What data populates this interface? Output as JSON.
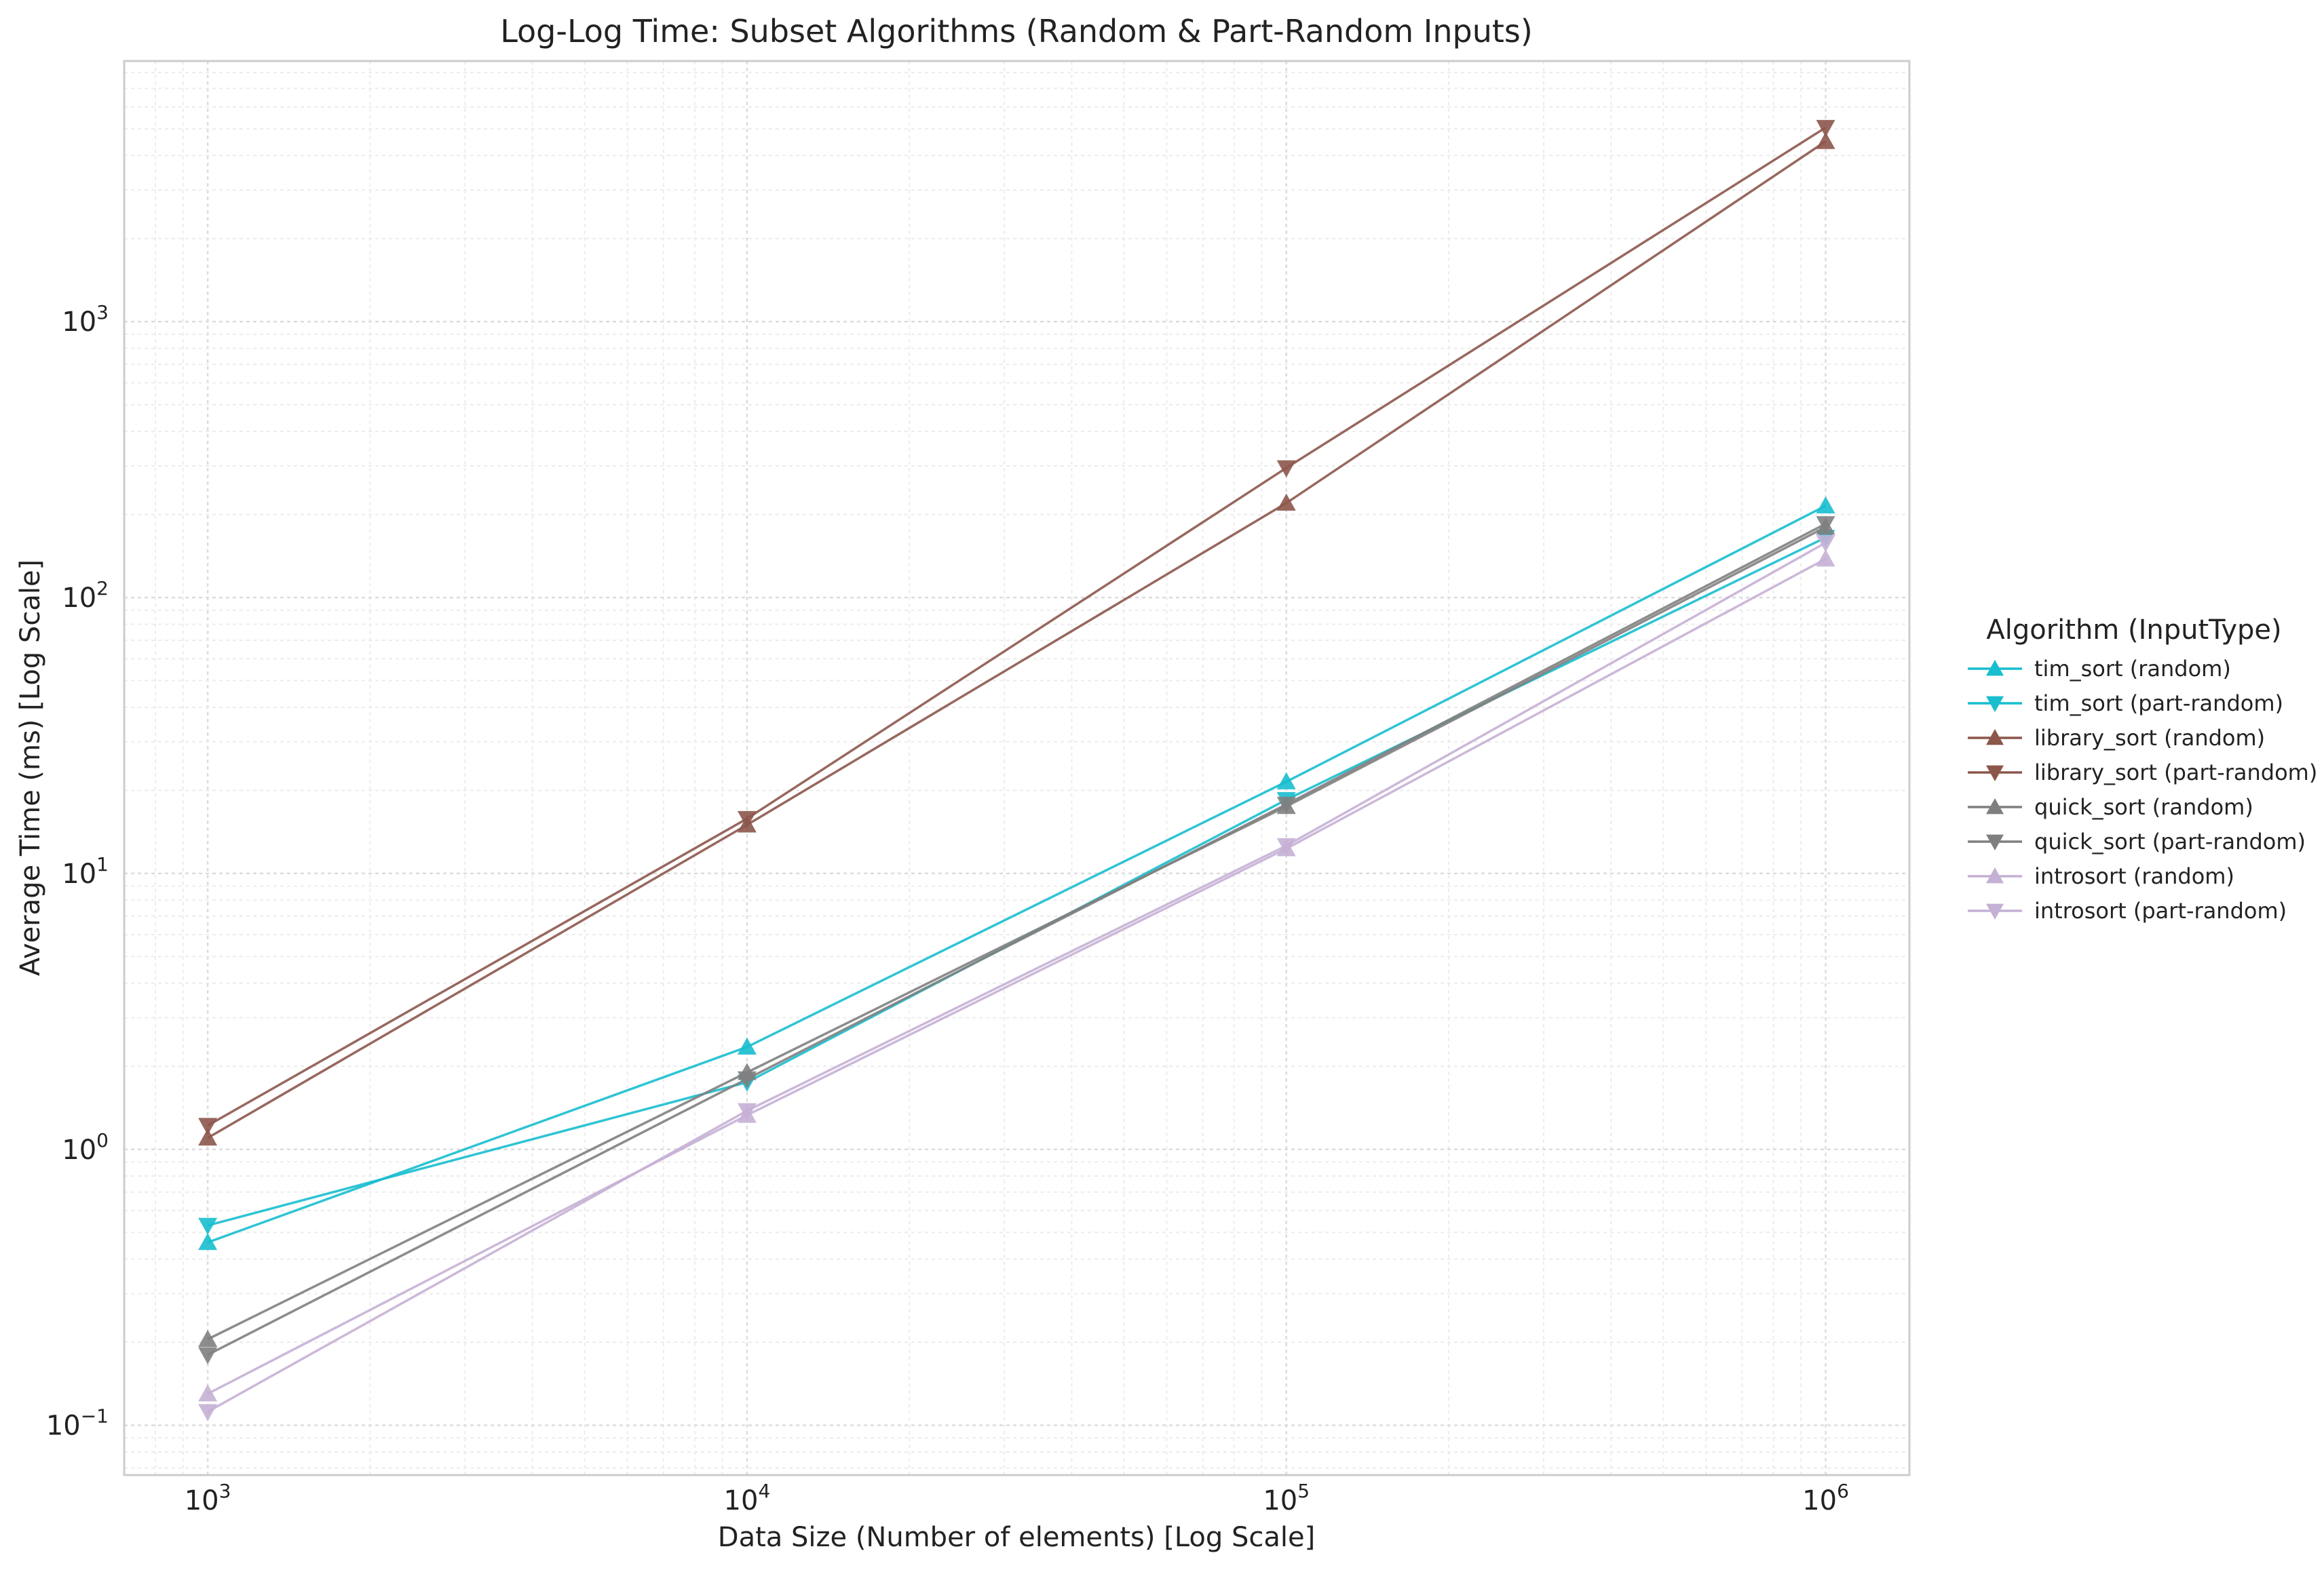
{
  "chart_data": {
    "type": "line",
    "title": "Log-Log Time: Subset Algorithms (Random & Part-Random Inputs)",
    "xlabel": "Data Size (Number of elements) [Log Scale]",
    "ylabel": "Average Time (ms) [Log Scale]",
    "x_scale": "log",
    "y_scale": "log",
    "x": [
      1000,
      10000,
      100000,
      1000000
    ],
    "xlim": [
      700,
      1430000
    ],
    "ylim": [
      0.066,
      8800
    ],
    "x_ticks": [
      {
        "value": 1000,
        "base": "10",
        "exp": "3"
      },
      {
        "value": 10000,
        "base": "10",
        "exp": "4"
      },
      {
        "value": 100000,
        "base": "10",
        "exp": "5"
      },
      {
        "value": 1000000,
        "base": "10",
        "exp": "6"
      }
    ],
    "y_ticks": [
      {
        "value": 0.1,
        "base": "10",
        "exp": "−1"
      },
      {
        "value": 1,
        "base": "10",
        "exp": "0"
      },
      {
        "value": 10,
        "base": "10",
        "exp": "1"
      },
      {
        "value": 100,
        "base": "10",
        "exp": "2"
      },
      {
        "value": 1000,
        "base": "10",
        "exp": "3"
      }
    ],
    "grid": true,
    "legend": {
      "title": "Algorithm (InputType)",
      "placement": "right"
    },
    "series": [
      {
        "name": "tim_sort (random)",
        "color": "#17becf",
        "marker": "triangle-up",
        "values": [
          0.46,
          2.35,
          21.5,
          215
        ]
      },
      {
        "name": "tim_sort (part-random)",
        "color": "#17becf",
        "marker": "triangle-down",
        "values": [
          0.53,
          1.75,
          18.5,
          165
        ]
      },
      {
        "name": "library_sort (random)",
        "color": "#8c564b",
        "marker": "triangle-up",
        "values": [
          1.1,
          15,
          220,
          4500
        ]
      },
      {
        "name": "library_sort (part-random)",
        "color": "#8c564b",
        "marker": "triangle-down",
        "values": [
          1.22,
          15.8,
          295,
          5050
        ]
      },
      {
        "name": "quick_sort (random)",
        "color": "#7f7f7f",
        "marker": "triangle-up",
        "values": [
          0.205,
          1.9,
          17.5,
          180
        ]
      },
      {
        "name": "quick_sort (part-random)",
        "color": "#7f7f7f",
        "marker": "triangle-down",
        "values": [
          0.18,
          1.8,
          17.8,
          185
        ]
      },
      {
        "name": "introsort (random)",
        "color": "#c5b0d5",
        "marker": "triangle-up",
        "values": [
          0.13,
          1.33,
          12.3,
          138
        ]
      },
      {
        "name": "introsort (part-random)",
        "color": "#c5b0d5",
        "marker": "triangle-down",
        "values": [
          0.112,
          1.38,
          12.6,
          158
        ]
      }
    ]
  }
}
